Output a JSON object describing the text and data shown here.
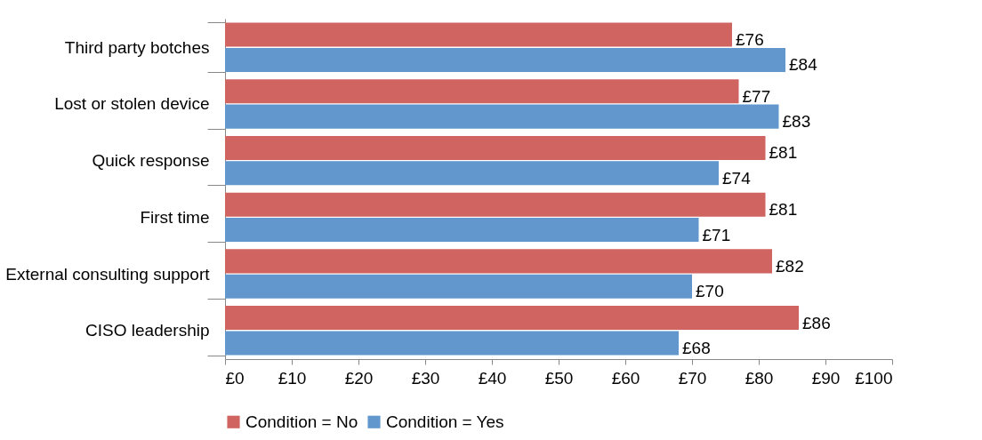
{
  "chart_data": {
    "type": "bar",
    "orientation": "horizontal",
    "categories": [
      "Third party botches",
      "Lost or stolen device",
      "Quick response",
      "First time",
      "External consulting support",
      "CISO leadership"
    ],
    "series": [
      {
        "name": "Condition = No",
        "color": "#cf6460",
        "values": [
          76,
          77,
          81,
          81,
          82,
          86
        ],
        "value_labels": [
          "£76",
          "£77",
          "£81",
          "£81",
          "£82",
          "£86"
        ]
      },
      {
        "name": "Condition = Yes",
        "color": "#6197cd",
        "values": [
          84,
          83,
          74,
          71,
          70,
          68
        ],
        "value_labels": [
          "£84",
          "£83",
          "£74",
          "£71",
          "£70",
          "£68"
        ]
      }
    ],
    "xlim": [
      0,
      100
    ],
    "xticks": [
      {
        "value": 0,
        "label": "£0"
      },
      {
        "value": 10,
        "label": "£10"
      },
      {
        "value": 20,
        "label": "£20"
      },
      {
        "value": 30,
        "label": "£30"
      },
      {
        "value": 40,
        "label": "£40"
      },
      {
        "value": 50,
        "label": "£50"
      },
      {
        "value": 60,
        "label": "£60"
      },
      {
        "value": 70,
        "label": "£70"
      },
      {
        "value": 80,
        "label": "£80"
      },
      {
        "value": 90,
        "label": "£90"
      },
      {
        "value": 100,
        "label": "£100"
      }
    ],
    "grid": false,
    "legend": "bottom"
  }
}
